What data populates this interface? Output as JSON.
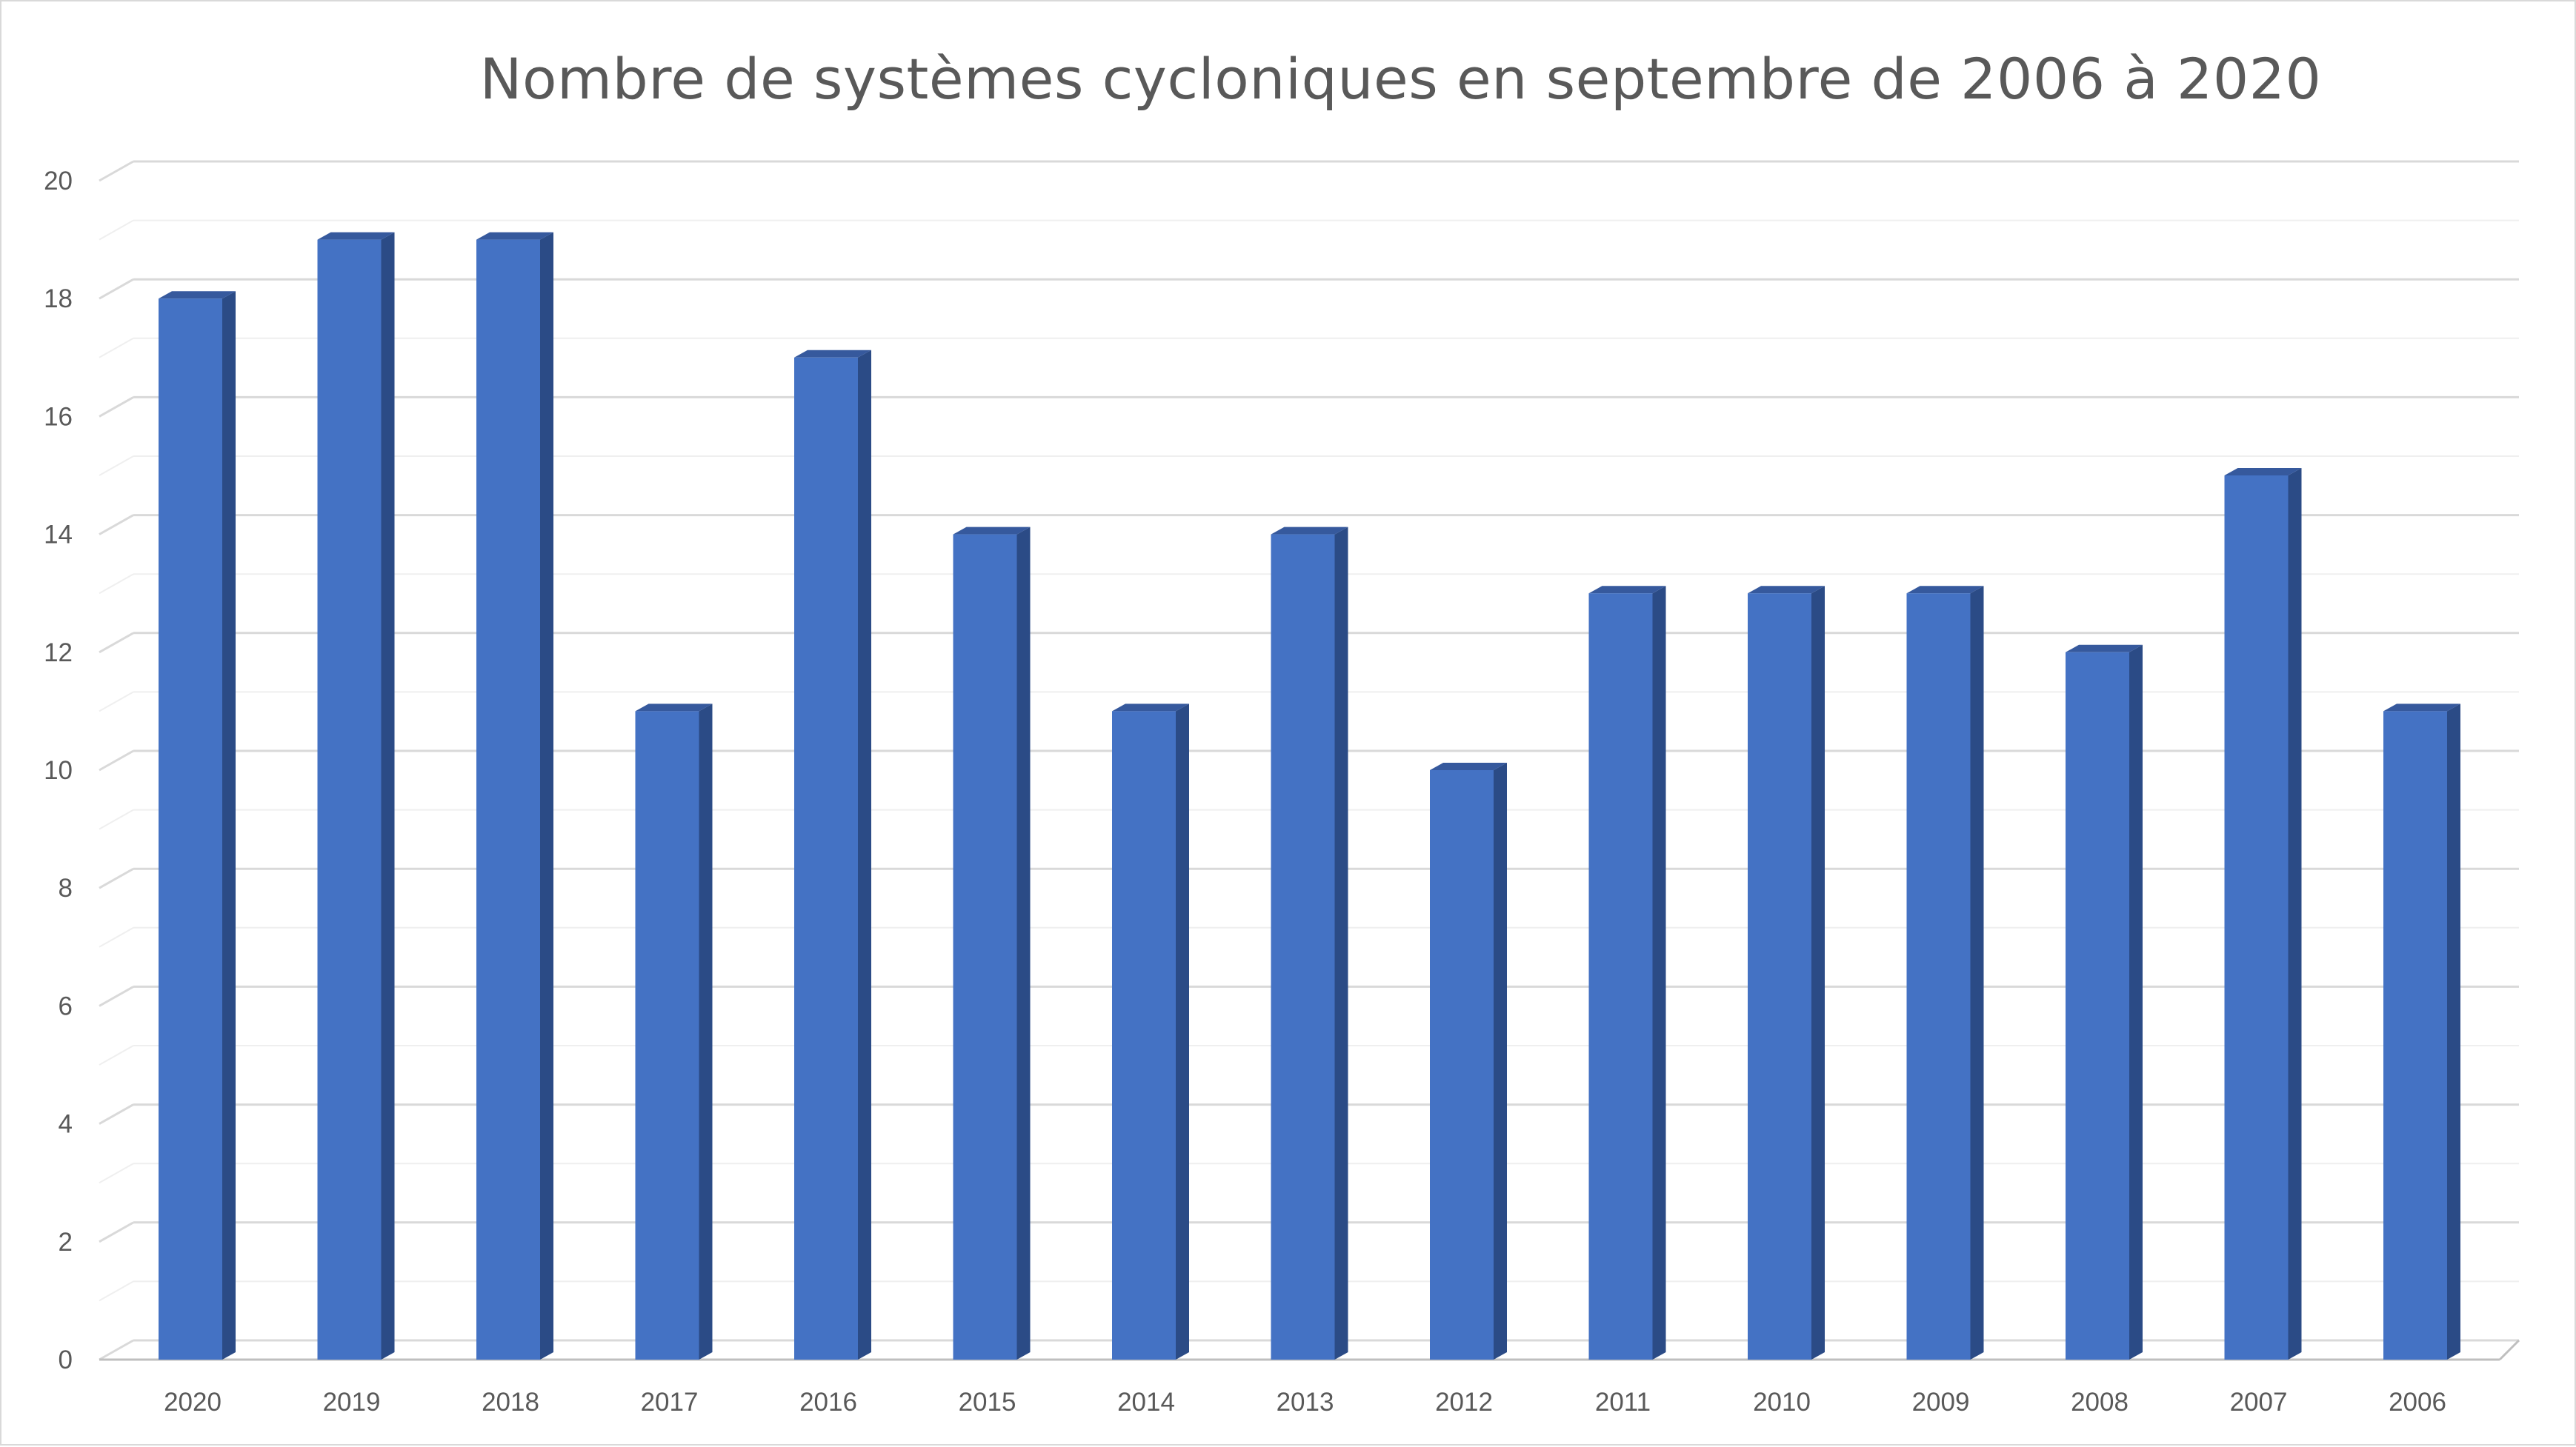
{
  "chart_data": {
    "type": "bar",
    "title": "Nombre de systèmes cycloniques en septembre de 2006 à 2020",
    "xlabel": "",
    "ylabel": "",
    "categories": [
      "2020",
      "2019",
      "2018",
      "2017",
      "2016",
      "2015",
      "2014",
      "2013",
      "2012",
      "2011",
      "2010",
      "2009",
      "2008",
      "2007",
      "2006"
    ],
    "series": [
      {
        "values": [
          18,
          19,
          19,
          11,
          17,
          14,
          11,
          14,
          10,
          13,
          13,
          13,
          12,
          15,
          11
        ]
      }
    ],
    "ylim": [
      0,
      20
    ],
    "yticks": [
      "0",
      "2",
      "4",
      "6",
      "8",
      "10",
      "12",
      "14",
      "16",
      "18",
      "20"
    ],
    "grid": true,
    "legend": "none",
    "style": "3d-column",
    "colors": {
      "bar_front": "#4472c4",
      "bar_side": "#2b4b86",
      "bar_top": "#36599d",
      "grid": "#d9d9d9",
      "axis_text": "#595959"
    }
  }
}
